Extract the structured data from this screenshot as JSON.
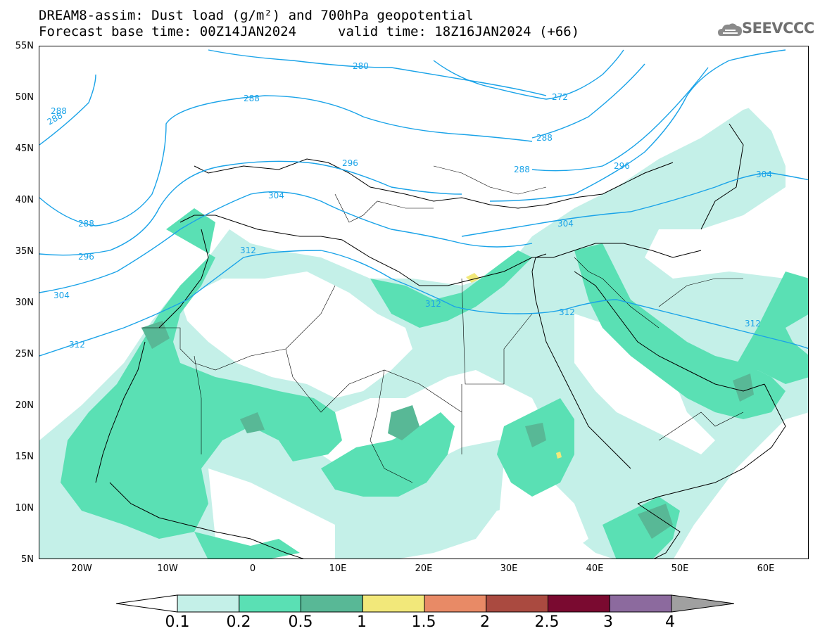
{
  "header": {
    "title_line1": "DREAM8-assim: Dust load (g/m²) and 700hPa geopotential",
    "title_line2": "Forecast base time: 00Z14JAN2024",
    "valid_time": "valid time: 18Z16JAN2024 (+66)",
    "logo_text": "SEEVCCC",
    "logo_icon": "cloud-icon"
  },
  "map": {
    "lat_labels": [
      "55N",
      "50N",
      "45N",
      "40N",
      "35N",
      "30N",
      "25N",
      "20N",
      "15N",
      "10N",
      "5N"
    ],
    "lon_labels": [
      "20W",
      "10W",
      "0",
      "10E",
      "20E",
      "30E",
      "40E",
      "50E",
      "60E"
    ],
    "contour_labels": [
      "288",
      "288",
      "296",
      "304",
      "312",
      "288",
      "296",
      "304",
      "312",
      "280",
      "272",
      "288",
      "288",
      "296",
      "304",
      "304",
      "312",
      "312",
      "312",
      "288"
    ]
  },
  "legend": {
    "labels": [
      "0.1",
      "0.2",
      "0.5",
      "1",
      "1.5",
      "2",
      "2.5",
      "3",
      "4"
    ],
    "colors": [
      "#c4f0e8",
      "#5ae0b4",
      "#58b896",
      "#f2e87a",
      "#e88a66",
      "#aa4a40",
      "#7a0a30",
      "#8c6a9e",
      "#a0a0a0"
    ]
  }
}
